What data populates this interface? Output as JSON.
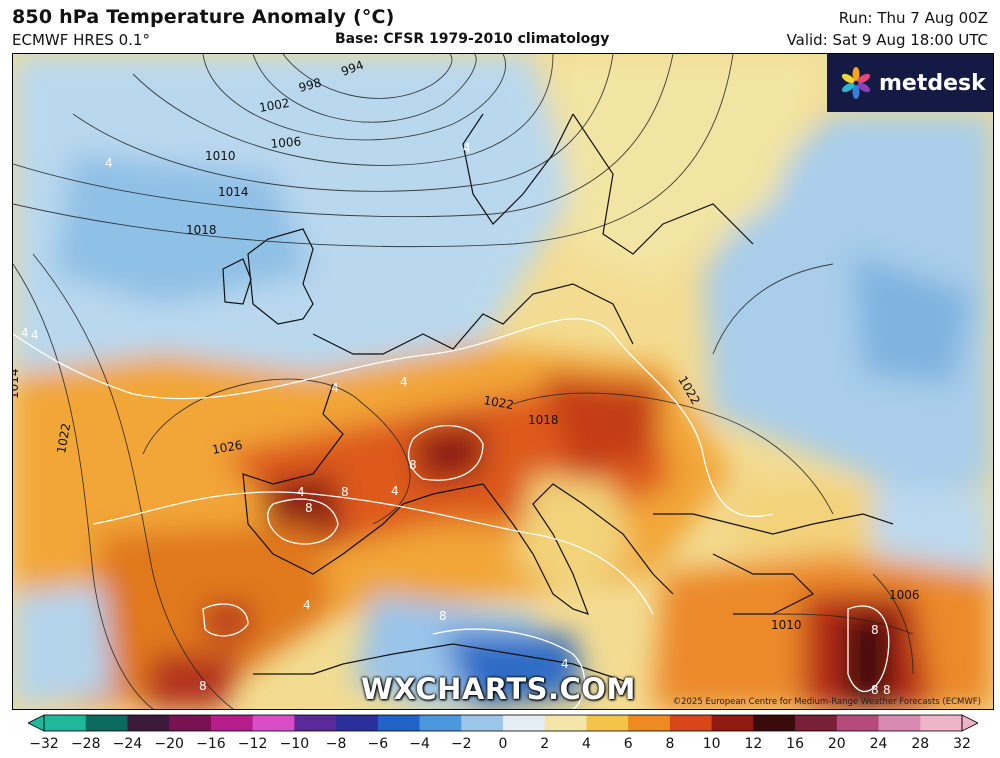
{
  "header": {
    "title": "850 hPa Temperature Anomaly (°C)",
    "model": "ECMWF HRES 0.1°",
    "base": "Base: CFSR 1979-2010 climatology",
    "run": "Run: Thu 7 Aug 00Z",
    "valid": "Valid: Sat 9 Aug 18:00 UTC"
  },
  "logo": {
    "text": "metdesk"
  },
  "watermark": "WXCHARTS.COM",
  "copyright": "©2025 European Centre for Medium-Range Weather Forecasts (ECMWF)",
  "colorbar": {
    "ticks": [
      "−32",
      "−28",
      "−24",
      "−20",
      "−16",
      "−12",
      "−10",
      "−8",
      "−6",
      "−4",
      "−2",
      "0",
      "2",
      "4",
      "6",
      "8",
      "10",
      "12",
      "16",
      "20",
      "24",
      "28",
      "32"
    ],
    "colors": [
      "#1fb89a",
      "#0b6b5e",
      "#3b1a3a",
      "#7a1152",
      "#b51e8a",
      "#d84ec8",
      "#5b2a9a",
      "#2b2f9b",
      "#2064c8",
      "#4b98df",
      "#9cc6ea",
      "#e6eef4",
      "#f3e6a8",
      "#f4c44a",
      "#ee8a22",
      "#d8461a",
      "#8e1a12",
      "#3a0b0b",
      "#7a1f3a",
      "#b64a7a",
      "#d98ab0",
      "#eeb4c8"
    ]
  },
  "map": {
    "isobar_labels": [
      "994",
      "998",
      "1002",
      "1006",
      "1010",
      "1014",
      "1018",
      "1014",
      "1022",
      "1026",
      "1022",
      "1018",
      "1022",
      "1006",
      "1010"
    ],
    "anomaly_labels": [
      "4",
      "4",
      "4",
      "4",
      "4",
      "8",
      "4",
      "8",
      "8",
      "4",
      "8",
      "8",
      "8",
      "8",
      "4",
      "4",
      "4",
      "8"
    ]
  }
}
